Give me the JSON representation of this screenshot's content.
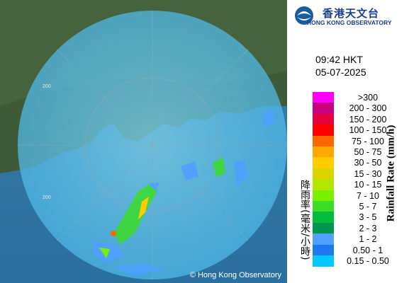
{
  "logo": {
    "chinese": "香港天文台",
    "english": "HONG KONG OBSERVATORY"
  },
  "time": "09:42 HKT",
  "date": "05-07-2025",
  "legend": {
    "title_chinese": "降雨率(毫米/小時)",
    "title_english": "Rainfall Rate (mm/h)",
    "items": [
      {
        "label": ">300",
        "color": "#ff00ff"
      },
      {
        "label": "200 - 300",
        "color": "#c8007c"
      },
      {
        "label": "150 - 200",
        "color": "#e6003c"
      },
      {
        "label": "100 - 150",
        "color": "#ff0000"
      },
      {
        "label": "75 - 100",
        "color": "#ff6600"
      },
      {
        "label": "50 - 75",
        "color": "#ffa800"
      },
      {
        "label": "30 - 50",
        "color": "#ffcc00"
      },
      {
        "label": "15 - 30",
        "color": "#dcd400"
      },
      {
        "label": "10 - 15",
        "color": "#b4e600"
      },
      {
        "label": "7 - 10",
        "color": "#78f000"
      },
      {
        "label": "5 - 7",
        "color": "#3cdc28"
      },
      {
        "label": "3 - 5",
        "color": "#00be3c"
      },
      {
        "label": "2 - 3",
        "color": "#009650"
      },
      {
        "label": "1 - 2",
        "color": "#50a0ff"
      },
      {
        "label": "0.50 - 1",
        "color": "#1e78f0"
      },
      {
        "label": "0.15 - 0.50",
        "color": "#00c8ff"
      }
    ]
  },
  "map": {
    "ring_labels": [
      "200",
      "200"
    ],
    "copyright": "© Hong Kong Observatory"
  }
}
